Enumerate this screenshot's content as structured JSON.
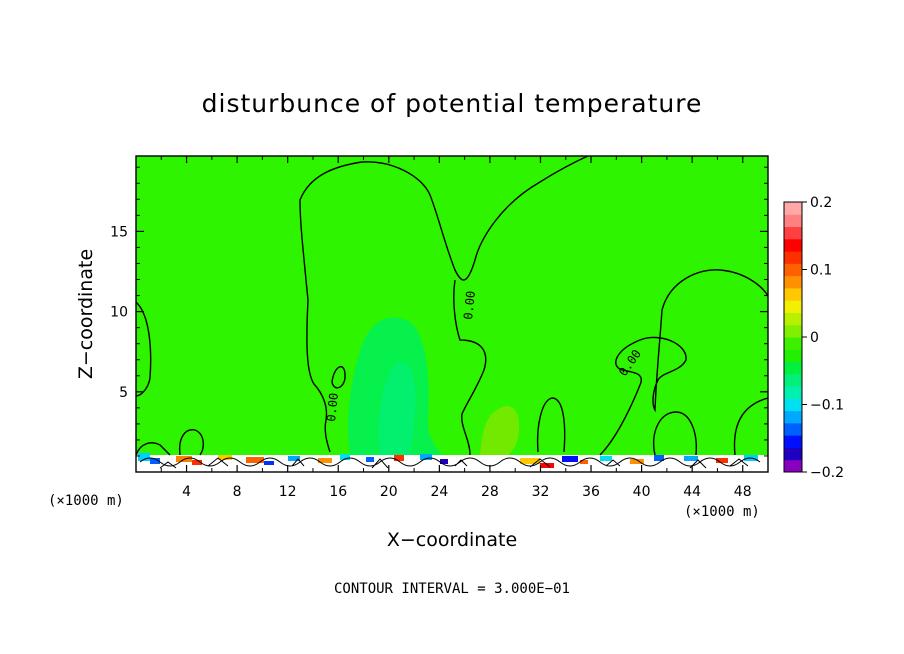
{
  "chart_data": {
    "type": "heatmap",
    "title": "disturbunce of potential temperature",
    "xlabel": "X−coordinate",
    "ylabel": "Z−coordinate",
    "x_unit_left": "(×1000 m)",
    "x_unit_right": "(×1000 m)",
    "xlim": [
      0,
      50
    ],
    "ylim": [
      0,
      19.7
    ],
    "x_ticks": [
      "4",
      "8",
      "12",
      "16",
      "20",
      "24",
      "28",
      "32",
      "36",
      "40",
      "44",
      "48"
    ],
    "x_tick_values": [
      4,
      8,
      12,
      16,
      20,
      24,
      28,
      32,
      36,
      40,
      44,
      48
    ],
    "y_ticks": [
      "5",
      "10",
      "15"
    ],
    "y_tick_values": [
      5,
      10,
      15
    ],
    "background_value": 0,
    "colorbar": {
      "min": -0.2,
      "max": 0.2,
      "labels": [
        "0.2",
        "0.1",
        "0",
        "−0.1",
        "−0.2"
      ],
      "label_values": [
        0.2,
        0.1,
        0,
        -0.1,
        -0.2
      ],
      "colors": [
        "#8a00c0",
        "#2000c0",
        "#0010ff",
        "#0060ff",
        "#00a8ff",
        "#00e0f0",
        "#00f0b0",
        "#00f07a",
        "#00f040",
        "#22f000",
        "#3cf000",
        "#80f000",
        "#b8f000",
        "#f0f000",
        "#ffc800",
        "#ff9000",
        "#ff6000",
        "#ff3000",
        "#ff0000",
        "#ff4040",
        "#ff8080",
        "#ffa8a8"
      ]
    },
    "contour_labels": [
      "0.00",
      "0.00",
      "0.00"
    ],
    "contour_label_values": [
      0,
      0,
      0
    ],
    "annotation": "CONTOUR INTERVAL = 3.000E−01"
  }
}
